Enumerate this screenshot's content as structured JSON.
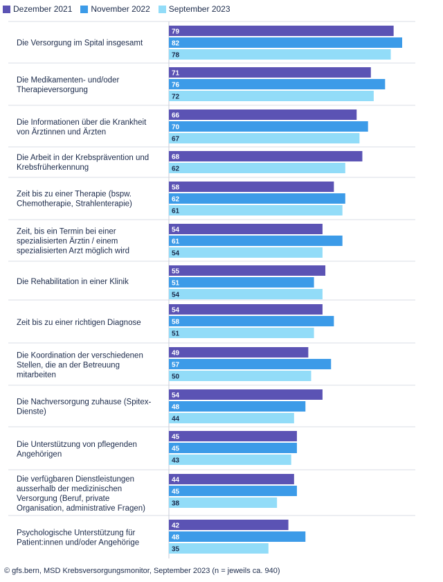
{
  "chart_data": {
    "type": "bar",
    "orientation": "horizontal",
    "series": [
      {
        "name": "Dezember 2021",
        "color": "#5b53b4",
        "values": [
          79,
          71,
          66,
          68,
          58,
          54,
          55,
          54,
          49,
          54,
          45,
          44,
          42
        ]
      },
      {
        "name": "November 2022",
        "color": "#3c9be8",
        "values": [
          82,
          76,
          70,
          null,
          62,
          61,
          51,
          58,
          57,
          48,
          45,
          45,
          48
        ]
      },
      {
        "name": "September 2023",
        "color": "#92dcf8",
        "values": [
          78,
          72,
          67,
          62,
          61,
          54,
          54,
          51,
          50,
          44,
          43,
          38,
          35
        ]
      }
    ],
    "categories": [
      [
        "Die Versorgung im Spital insgesamt"
      ],
      [
        "Die Medikamenten- und/oder",
        "Therapieversorgung"
      ],
      [
        "Die Informationen über die Krankheit",
        "von Ärztinnen und Ärzten"
      ],
      [
        "Die Arbeit in der Krebsprävention und",
        "Krebsfrüherkennung"
      ],
      [
        "Zeit bis zu einer Therapie (bspw.",
        "Chemotherapie, Strahlenterapie)"
      ],
      [
        "Zeit, bis ein Termin bei einer",
        "spezialisierten Ärztin / einem",
        "spezialisierten Arzt möglich wird"
      ],
      [
        "Die Rehabilitation in einer Klinik"
      ],
      [
        "Zeit bis zu einer richtigen Diagnose"
      ],
      [
        "Die Koordination der verschiedenen",
        "Stellen, die an der Betreuung",
        "mitarbeiten"
      ],
      [
        "Die Nachversorgung zuhause (Spitex-",
        "Dienste)"
      ],
      [
        "Die Unterstützung von pflegenden",
        "Angehörigen"
      ],
      [
        "Die verfügbaren Dienstleistungen",
        "ausserhalb der medizinischen",
        "Versorgung (Beruf, private",
        "Organisation, administrative Fragen)"
      ],
      [
        "Psychologische Unterstützung für",
        "Patient:innen und/oder Angehörige"
      ]
    ],
    "xlim": [
      0,
      100
    ],
    "legend_position": "top-left",
    "gridlines": "horizontal separators between categories"
  },
  "source_note": "© gfs.bern, MSD Krebsversorgungsmonitor, September 2023 (n = jeweils ca. 940)"
}
